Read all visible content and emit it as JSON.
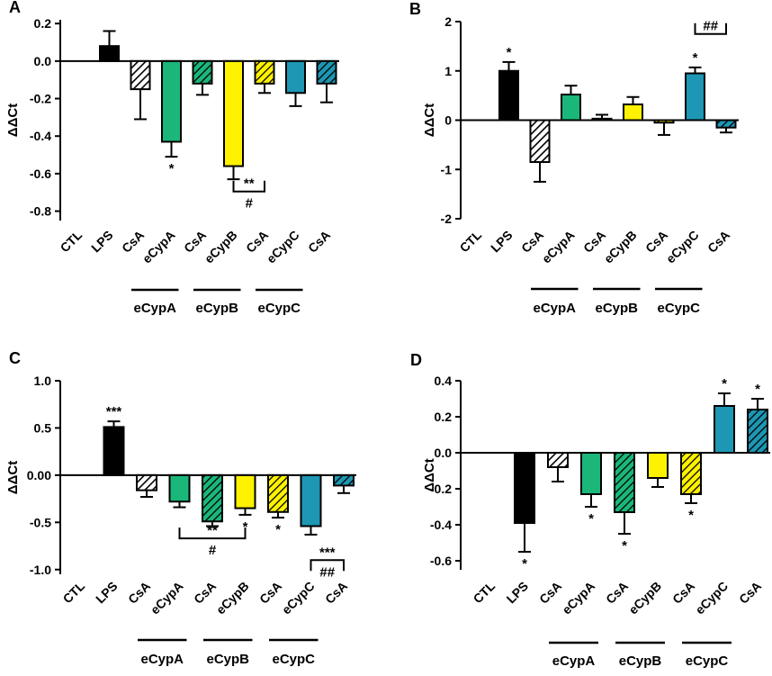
{
  "figure": {
    "title": ""
  },
  "palette": {
    "LPS": "#000000",
    "CsA": "#ffffff",
    "eCypA": "#1bb77a",
    "eCypB": "#fef200",
    "eCypC": "#1d97b4",
    "axis": "#000000"
  },
  "chart_data": [
    {
      "panel": "A",
      "type": "bar",
      "ylabel": "ΔΔCt",
      "ylim": [
        -0.85,
        0.22
      ],
      "yticks": [
        0.2,
        0.0,
        -0.2,
        -0.4,
        -0.6,
        -0.8
      ],
      "ytick_labels": [
        "0.2",
        "0.0",
        "-0.2",
        "-0.4",
        "-0.6",
        "-0.8"
      ],
      "categories": [
        "CTL",
        "LPS",
        "CsA",
        "eCypA",
        "CsA",
        "eCypB",
        "CsA",
        "eCypC",
        "CsA"
      ],
      "fills": [
        "none",
        "LPS",
        "hatchWhite",
        "eCypA",
        "hatchA",
        "eCypB",
        "hatchB",
        "eCypC",
        "hatchC"
      ],
      "values": [
        0,
        0.08,
        -0.15,
        -0.43,
        -0.12,
        -0.56,
        -0.12,
        -0.17,
        -0.12
      ],
      "errors": [
        0,
        0.08,
        0.16,
        0.08,
        0.06,
        0.07,
        0.05,
        0.07,
        0.1
      ],
      "stars": [
        {
          "bar": 3,
          "side": "below",
          "text": "*"
        }
      ],
      "brackets": [
        {
          "from": 5,
          "to": 6,
          "y": -0.695,
          "dir": "down",
          "top": "**",
          "bottom": "#"
        }
      ],
      "groups": [
        {
          "label": "eCypA",
          "from": 2,
          "to": 3
        },
        {
          "label": "eCypB",
          "from": 4,
          "to": 5
        },
        {
          "label": "eCypC",
          "from": 6,
          "to": 7
        }
      ]
    },
    {
      "panel": "B",
      "type": "bar",
      "ylabel": "ΔΔCt",
      "ylim": [
        -2,
        2
      ],
      "yticks": [
        2,
        1,
        0,
        -1,
        -2
      ],
      "ytick_labels": [
        "2",
        "1",
        "0",
        "-1",
        "-2"
      ],
      "categories": [
        "CTL",
        "LPS",
        "CsA",
        "eCypA",
        "CsA",
        "eCypB",
        "CsA",
        "eCypC",
        "CsA"
      ],
      "fills": [
        "none",
        "LPS",
        "hatchWhite",
        "eCypA",
        "hatchA",
        "eCypB",
        "hatchB",
        "eCypC",
        "hatchC"
      ],
      "values": [
        0,
        1.0,
        -0.85,
        0.52,
        0.03,
        0.32,
        -0.05,
        0.95,
        -0.15
      ],
      "errors": [
        0,
        0.18,
        0.4,
        0.18,
        0.08,
        0.15,
        0.25,
        0.12,
        0.1
      ],
      "stars": [
        {
          "bar": 1,
          "side": "above",
          "text": "*"
        },
        {
          "bar": 7,
          "side": "above",
          "text": "*"
        }
      ],
      "brackets": [
        {
          "from": 7,
          "to": 8,
          "y": 1.75,
          "dir": "down",
          "top": "##",
          "bottom": ""
        }
      ],
      "groups": [
        {
          "label": "eCypA",
          "from": 2,
          "to": 3
        },
        {
          "label": "eCypB",
          "from": 4,
          "to": 5
        },
        {
          "label": "eCypC",
          "from": 6,
          "to": 7
        }
      ]
    },
    {
      "panel": "C",
      "type": "bar",
      "ylabel": "ΔΔCt",
      "ylim": [
        -1.05,
        1.0
      ],
      "yticks": [
        1.0,
        0.5,
        0.0,
        -0.5,
        -1.0
      ],
      "ytick_labels": [
        "1.0",
        "0.5",
        "0.00",
        "-0.5",
        "-1.0"
      ],
      "categories": [
        "CTL",
        "LPS",
        "CsA",
        "eCypA",
        "CsA",
        "eCypB",
        "CsA",
        "eCypC",
        "CsA"
      ],
      "fills": [
        "none",
        "LPS",
        "hatchWhite",
        "eCypA",
        "hatchA",
        "eCypB",
        "hatchB",
        "eCypC",
        "hatchC"
      ],
      "values": [
        0,
        0.51,
        -0.16,
        -0.28,
        -0.49,
        -0.35,
        -0.39,
        -0.54,
        -0.11
      ],
      "errors": [
        0,
        0.06,
        0.07,
        0.06,
        0.05,
        0.07,
        0.06,
        0.09,
        0.08
      ],
      "stars": [
        {
          "bar": 1,
          "side": "above",
          "text": "***"
        },
        {
          "bar": 5,
          "side": "below",
          "text": "*"
        },
        {
          "bar": 6,
          "side": "below",
          "text": "*"
        }
      ],
      "brackets": [
        {
          "from": 3,
          "to": 5,
          "y": -0.67,
          "dir": "down",
          "top": "**",
          "bottom": "#"
        },
        {
          "from": 7,
          "to": 8,
          "y": -0.9,
          "dir": "up",
          "top": "***",
          "bottom": "##"
        }
      ],
      "groups": [
        {
          "label": "eCypA",
          "from": 2,
          "to": 3
        },
        {
          "label": "eCypB",
          "from": 4,
          "to": 5
        },
        {
          "label": "eCypC",
          "from": 6,
          "to": 7
        }
      ]
    },
    {
      "panel": "D",
      "type": "bar",
      "ylabel": "ΔΔCt",
      "ylim": [
        -0.65,
        0.4
      ],
      "yticks": [
        0.4,
        0.2,
        0.0,
        -0.2,
        -0.4,
        -0.6
      ],
      "ytick_labels": [
        "0.4",
        "0.2",
        "0.0",
        "-0.2",
        "-0.4",
        "-0.6"
      ],
      "categories": [
        "CTL",
        "LPS",
        "CsA",
        "eCypA",
        "CsA",
        "eCypB",
        "CsA",
        "eCypC",
        "CsA"
      ],
      "fills": [
        "none",
        "LPS",
        "hatchWhite",
        "eCypA",
        "hatchA",
        "eCypB",
        "hatchB",
        "eCypC",
        "hatchC"
      ],
      "values": [
        0,
        -0.39,
        -0.08,
        -0.23,
        -0.33,
        -0.14,
        -0.23,
        0.26,
        0.24
      ],
      "errors": [
        0,
        0.16,
        0.08,
        0.07,
        0.12,
        0.05,
        0.05,
        0.07,
        0.06
      ],
      "stars": [
        {
          "bar": 1,
          "side": "below",
          "text": "*"
        },
        {
          "bar": 3,
          "side": "below",
          "text": "*"
        },
        {
          "bar": 4,
          "side": "below",
          "text": "*"
        },
        {
          "bar": 6,
          "side": "below",
          "text": "*"
        },
        {
          "bar": 7,
          "side": "above",
          "text": "*"
        },
        {
          "bar": 8,
          "side": "above",
          "text": "*"
        }
      ],
      "brackets": [],
      "groups": [
        {
          "label": "eCypA",
          "from": 2,
          "to": 3
        },
        {
          "label": "eCypB",
          "from": 4,
          "to": 5
        },
        {
          "label": "eCypC",
          "from": 6,
          "to": 7
        }
      ]
    }
  ]
}
